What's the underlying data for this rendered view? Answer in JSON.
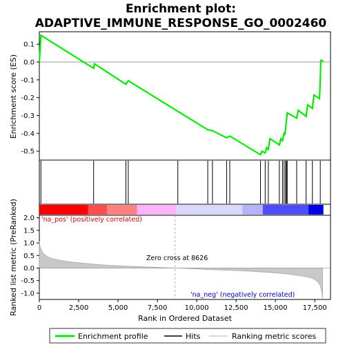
{
  "chart_data": {
    "type": "line",
    "title_line1": "Enrichment plot:",
    "title_line2": "ADAPTIVE_IMMUNE_RESPONSE_GO_0002460",
    "xlabel": "Rank in Ordered Dataset",
    "ylabel_top": "Enrichment score (ES)",
    "ylabel_bottom": "Ranked list metric (PreRanked)",
    "xlim": [
      0,
      18500
    ],
    "x_ticks": [
      0,
      2500,
      5000,
      7500,
      10000,
      12500,
      15000,
      17500
    ],
    "x_tick_labels": [
      "0",
      "2,500",
      "5,000",
      "7,500",
      "10,000",
      "12,500",
      "15,000",
      "17,500"
    ],
    "es_ylim": [
      -0.55,
      0.17
    ],
    "es_ticks": [
      0.1,
      0.0,
      -0.1,
      -0.2,
      -0.3,
      -0.4,
      -0.5
    ],
    "es_tick_labels": [
      "0.1",
      "0.0",
      "-0.1",
      "-0.2",
      "-0.3",
      "-0.4",
      "-0.5"
    ],
    "metric_ylim": [
      -1.25,
      2.1
    ],
    "metric_ticks": [
      2.0,
      1.5,
      1.0,
      0.5,
      0.0,
      -0.5,
      -1.0
    ],
    "metric_tick_labels": [
      "2.0",
      "1.5",
      "1.0",
      "0.5",
      "0.0",
      "-0.5",
      "-1.0"
    ],
    "es_curve": {
      "x": [
        0,
        100,
        3450,
        3500,
        5500,
        5650,
        10700,
        11000,
        11900,
        12100,
        14050,
        14150,
        14350,
        14450,
        14550,
        14650,
        15250,
        15350,
        15450,
        15550,
        15600,
        15650,
        15700,
        15750,
        16350,
        16450,
        16950,
        17050,
        17350,
        17450,
        17800,
        17850,
        17880,
        17900,
        18050
      ],
      "y": [
        0.0,
        0.15,
        -0.035,
        -0.01,
        -0.125,
        -0.105,
        -0.38,
        -0.385,
        -0.425,
        -0.415,
        -0.52,
        -0.5,
        -0.51,
        -0.48,
        -0.49,
        -0.43,
        -0.465,
        -0.43,
        -0.44,
        -0.4,
        -0.405,
        -0.37,
        -0.33,
        -0.285,
        -0.315,
        -0.27,
        -0.305,
        -0.24,
        -0.26,
        -0.185,
        -0.205,
        -0.1,
        0.01,
        0.01,
        0.005
      ]
    },
    "hits": [
      100,
      3450,
      5500,
      5650,
      8800,
      10700,
      11000,
      11900,
      12100,
      14050,
      14350,
      14550,
      15250,
      15450,
      15550,
      15650,
      15700,
      15750,
      16350,
      16950,
      17350,
      17850
    ],
    "metric_curve": {
      "x": [
        0,
        50,
        150,
        300,
        500,
        800,
        1200,
        1800,
        2500,
        3500,
        4500,
        5500,
        6500,
        7500,
        8626,
        9500,
        10500,
        11500,
        12500,
        13500,
        14500,
        15500,
        16000,
        16500,
        17000,
        17300,
        17500,
        17700,
        17850,
        17950,
        18000
      ],
      "y": [
        1.05,
        0.85,
        0.68,
        0.55,
        0.46,
        0.38,
        0.32,
        0.26,
        0.21,
        0.15,
        0.11,
        0.08,
        0.05,
        0.03,
        0.0,
        -0.02,
        -0.05,
        -0.08,
        -0.1,
        -0.13,
        -0.17,
        -0.22,
        -0.26,
        -0.3,
        -0.35,
        -0.4,
        -0.45,
        -0.55,
        -0.7,
        -0.95,
        -1.2
      ]
    },
    "heat_colors": [
      "#ff0000",
      "#ff4d4d",
      "#ff8080",
      "#ffb3ff",
      "#d9d9ff",
      "#b3b3ff",
      "#4d4dff",
      "#0000e6"
    ],
    "heat_breaks": [
      0,
      3100,
      4300,
      6200,
      8700,
      12900,
      14200,
      17100,
      18050
    ],
    "zero_cross_label": "Zero cross at 8626",
    "zero_cross_x": 8626,
    "na_pos_label": "'na_pos' (positively correlated)",
    "na_neg_label": "'na_neg' (negatively correlated)",
    "legend": {
      "enrichment": "Enrichment profile",
      "hits": "Hits",
      "metric": "Ranking metric scores"
    },
    "colors": {
      "es_line": "#00ee00",
      "hits": "#000000",
      "metric_fill": "#c8c8c8",
      "na_pos": "#dd0000",
      "na_neg": "#0000cc"
    }
  }
}
